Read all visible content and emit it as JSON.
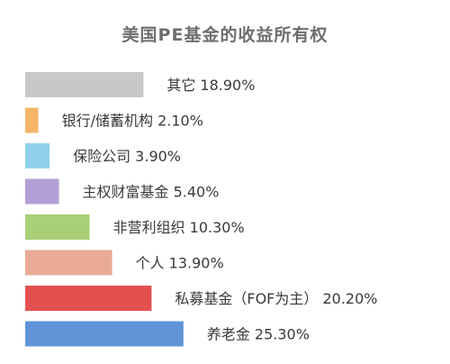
{
  "chart_data": {
    "type": "bar",
    "orientation": "horizontal",
    "title": "美国PE基金的收益所有权",
    "categories": [
      "其它",
      "银行/储蓄机构",
      "保险公司",
      "主权财富基金",
      "非营利组织",
      "个人",
      "私募基金（FOF为主）",
      "养老金"
    ],
    "values": [
      18.9,
      2.1,
      3.9,
      5.4,
      10.3,
      13.9,
      20.2,
      25.3
    ],
    "value_labels": [
      "18.90%",
      "2.10%",
      "3.90%",
      "5.40%",
      "10.30%",
      "13.90%",
      "20.20%",
      "25.30%"
    ],
    "colors": [
      "#c8c8c8",
      "#f5b66a",
      "#8fd1ea",
      "#b39fd6",
      "#a9cf78",
      "#e9ab97",
      "#e2514f",
      "#5f95d6"
    ],
    "unit": "%",
    "grid": false,
    "legend": "none"
  }
}
